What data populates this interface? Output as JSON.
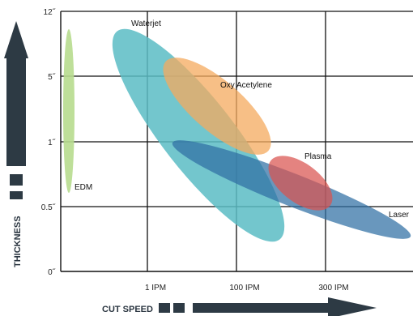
{
  "chart_data": {
    "type": "scatter",
    "xlabel": "CUT SPEED",
    "ylabel": "THICKNESS",
    "x_ticks": [
      "1 IPM",
      "100 IPM",
      "300 IPM"
    ],
    "y_ticks": [
      "12˝",
      "5˝",
      "1˝",
      "0.5˝",
      "0˝"
    ],
    "grid": true,
    "legend": "none",
    "regions": [
      {
        "name": "Waterjet",
        "color": "#5bbcc4"
      },
      {
        "name": "Oxy Acetylene",
        "color": "#f4a95e"
      },
      {
        "name": "Laser",
        "color": "#2f6fa3"
      },
      {
        "name": "Plasma",
        "color": "#d9534f"
      },
      {
        "name": "EDM",
        "color": "#b7dc8e"
      }
    ]
  }
}
